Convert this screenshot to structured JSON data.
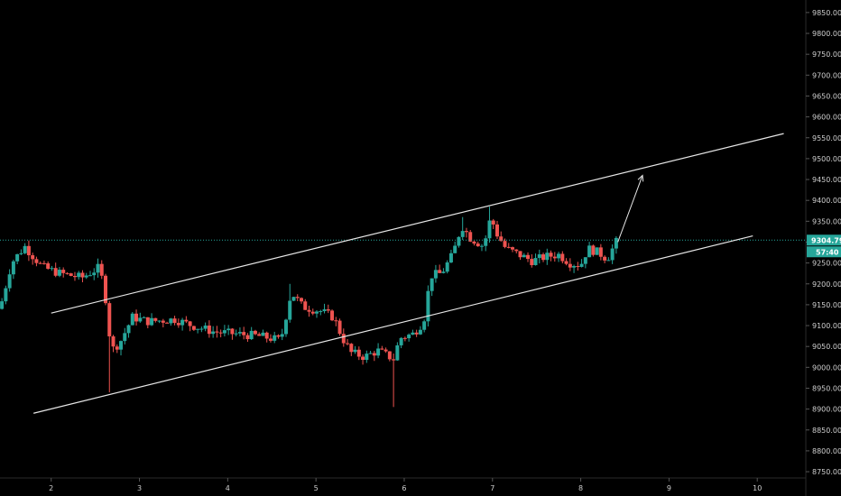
{
  "colors": {
    "background": "#000000",
    "up": "#26a69a",
    "down": "#ef5350",
    "channel": "#e6e6e6",
    "price_line": "#26a69a",
    "axis_text": "#cfcfcf",
    "axis_border": "#2a2a2a"
  },
  "chart_data": {
    "type": "candlestick",
    "x_ticks": [
      "2",
      "3",
      "4",
      "5",
      "6",
      "7",
      "8",
      "9",
      "10"
    ],
    "y_ticks": [
      "8750.00",
      "8800.00",
      "8850.00",
      "8900.00",
      "8950.00",
      "9000.00",
      "9050.00",
      "9100.00",
      "9150.00",
      "9200.00",
      "9250.00",
      "9300.00",
      "9350.00",
      "9400.00",
      "9450.00",
      "9500.00",
      "9550.00",
      "9600.00",
      "9650.00",
      "9700.00",
      "9750.00",
      "9800.00",
      "9850.00"
    ],
    "ylim": [
      8735,
      9880
    ],
    "xlim": [
      1.42,
      10.55
    ],
    "last_price": "9304.79",
    "countdown": "57:40",
    "anchors": [
      [
        1.42,
        9140
      ],
      [
        1.55,
        9250
      ],
      [
        1.7,
        9290
      ],
      [
        1.9,
        9240
      ],
      [
        2.1,
        9225
      ],
      [
        2.35,
        9215
      ],
      [
        2.55,
        9240
      ],
      [
        2.62,
        9160
      ],
      [
        2.68,
        9040
      ],
      [
        2.78,
        9060
      ],
      [
        2.92,
        9120
      ],
      [
        3.1,
        9110
      ],
      [
        3.4,
        9115
      ],
      [
        3.6,
        9100
      ],
      [
        3.85,
        9085
      ],
      [
        4.1,
        9080
      ],
      [
        4.35,
        9075
      ],
      [
        4.6,
        9065
      ],
      [
        4.72,
        9180
      ],
      [
        4.85,
        9145
      ],
      [
        5.05,
        9135
      ],
      [
        5.2,
        9120
      ],
      [
        5.3,
        9070
      ],
      [
        5.4,
        9035
      ],
      [
        5.55,
        9025
      ],
      [
        5.7,
        9040
      ],
      [
        5.88,
        9020
      ],
      [
        5.95,
        9070
      ],
      [
        6.1,
        9080
      ],
      [
        6.22,
        9110
      ],
      [
        6.3,
        9220
      ],
      [
        6.42,
        9225
      ],
      [
        6.55,
        9270
      ],
      [
        6.65,
        9340
      ],
      [
        6.75,
        9310
      ],
      [
        6.9,
        9290
      ],
      [
        6.98,
        9360
      ],
      [
        7.05,
        9320
      ],
      [
        7.15,
        9285
      ],
      [
        7.3,
        9270
      ],
      [
        7.45,
        9255
      ],
      [
        7.6,
        9265
      ],
      [
        7.75,
        9270
      ],
      [
        7.88,
        9250
      ],
      [
        8.0,
        9245
      ],
      [
        8.08,
        9285
      ],
      [
        8.2,
        9275
      ],
      [
        8.3,
        9260
      ],
      [
        8.4,
        9300
      ]
    ],
    "wick_extremes": [
      [
        2.68,
        8940
      ],
      [
        5.88,
        8905
      ],
      [
        6.98,
        9385
      ],
      [
        6.65,
        9360
      ],
      [
        4.72,
        9200
      ]
    ],
    "channel_upper": [
      [
        2.0,
        9130
      ],
      [
        10.3,
        9560
      ]
    ],
    "channel_lower": [
      [
        1.8,
        8890
      ],
      [
        9.95,
        9315
      ]
    ],
    "projection_arrow": [
      [
        8.42,
        9300
      ],
      [
        8.7,
        9460
      ]
    ]
  }
}
